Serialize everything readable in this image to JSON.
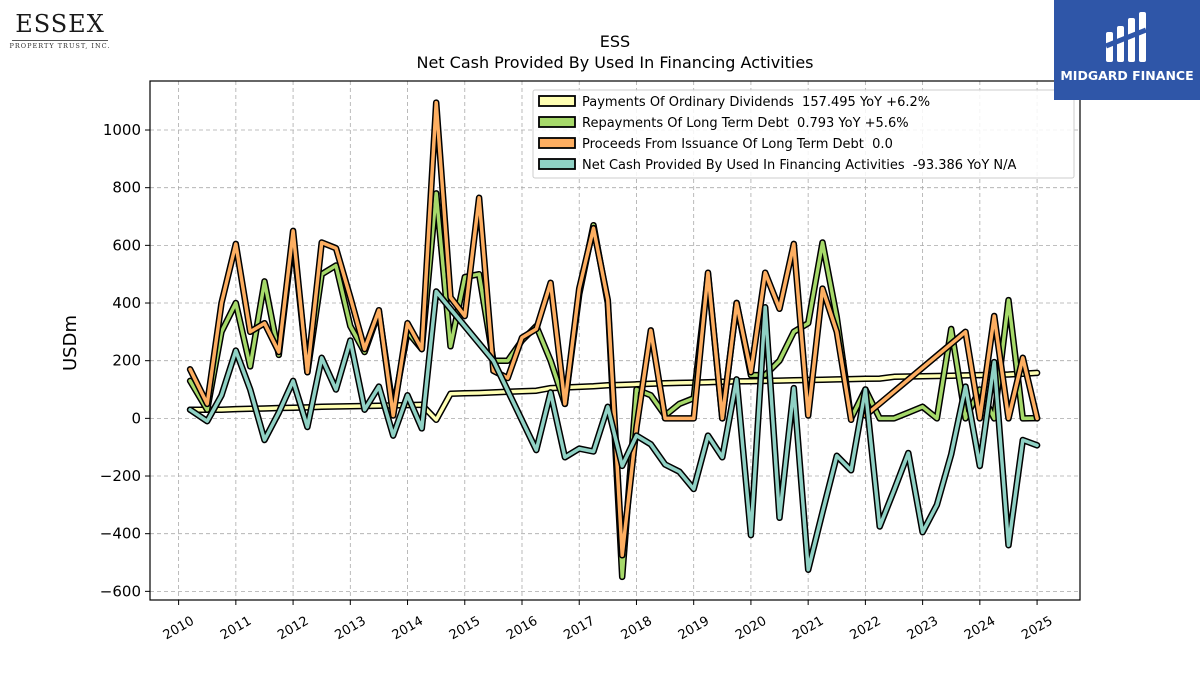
{
  "header": {
    "left_logo_text": "ESSEX",
    "left_logo_subtext": "PROPERTY TRUST, INC.",
    "right_logo_text": "MIDGARD FINANCE"
  },
  "colors": {
    "dividends": "#ffffb3",
    "debt_repayment": "#a6d96a",
    "debt_issuance": "#fdae61",
    "net_financing": "#8fd1c4",
    "outline": "#000000",
    "grid": "#aaaaaa",
    "logo_bg": "#2f56a8"
  },
  "chart_data": {
    "type": "line",
    "title": "ESS",
    "subtitle": "Net Cash Provided By Used In Financing Activities",
    "ylabel": "USDm",
    "xlabel": "",
    "ylim": [
      -630,
      1170
    ],
    "xlim": [
      2009.5,
      2025.75
    ],
    "grid": true,
    "legend_position": "top-right",
    "x_ticks": [
      "2010",
      "2011",
      "2012",
      "2013",
      "2014",
      "2015",
      "2016",
      "2017",
      "2018",
      "2019",
      "2020",
      "2021",
      "2022",
      "2023",
      "2024",
      "2025"
    ],
    "y_ticks": [
      "−600",
      "−400",
      "−200",
      "0",
      "200",
      "400",
      "600",
      "800",
      "1000"
    ],
    "series": [
      {
        "name": "Payments Of Ordinary Dividends",
        "legend_label": "Payments Of Ordinary Dividends  157.495 YoY +6.2%",
        "color_key": "dividends",
        "points": [
          [
            2010.2,
            30
          ],
          [
            2010.5,
            30
          ],
          [
            2010.75,
            30
          ],
          [
            2011.0,
            32
          ],
          [
            2011.25,
            33
          ],
          [
            2011.5,
            34
          ],
          [
            2011.75,
            36
          ],
          [
            2012.0,
            37
          ],
          [
            2012.25,
            38
          ],
          [
            2012.5,
            40
          ],
          [
            2012.75,
            41
          ],
          [
            2013.0,
            42
          ],
          [
            2013.25,
            43
          ],
          [
            2013.5,
            44
          ],
          [
            2013.75,
            45
          ],
          [
            2014.0,
            46
          ],
          [
            2014.25,
            47
          ],
          [
            2014.5,
            -5
          ],
          [
            2014.75,
            85
          ],
          [
            2015.0,
            87
          ],
          [
            2015.25,
            88
          ],
          [
            2015.5,
            90
          ],
          [
            2015.75,
            92
          ],
          [
            2016.0,
            94
          ],
          [
            2016.25,
            96
          ],
          [
            2016.5,
            105
          ],
          [
            2016.75,
            107
          ],
          [
            2017.0,
            109
          ],
          [
            2017.25,
            111
          ],
          [
            2017.5,
            115
          ],
          [
            2017.75,
            116
          ],
          [
            2018.0,
            118
          ],
          [
            2018.25,
            120
          ],
          [
            2018.5,
            122
          ],
          [
            2018.75,
            123
          ],
          [
            2019.0,
            124
          ],
          [
            2019.25,
            125
          ],
          [
            2019.5,
            127
          ],
          [
            2019.75,
            128
          ],
          [
            2020.0,
            129
          ],
          [
            2020.25,
            130
          ],
          [
            2020.5,
            131
          ],
          [
            2020.75,
            132
          ],
          [
            2021.0,
            133
          ],
          [
            2021.25,
            134
          ],
          [
            2021.5,
            135
          ],
          [
            2021.75,
            136
          ],
          [
            2022.0,
            137
          ],
          [
            2022.25,
            138
          ],
          [
            2022.5,
            144
          ],
          [
            2022.75,
            145
          ],
          [
            2023.0,
            146
          ],
          [
            2023.25,
            147
          ],
          [
            2023.5,
            148
          ],
          [
            2023.75,
            149
          ],
          [
            2024.0,
            150
          ],
          [
            2024.25,
            151
          ],
          [
            2024.5,
            152
          ],
          [
            2024.75,
            155
          ],
          [
            2025.0,
            157.495
          ]
        ]
      },
      {
        "name": "Repayments Of Long Term Debt",
        "legend_label": "Repayments Of Long Term Debt  0.793 YoY +5.6%",
        "color_key": "debt_repayment",
        "points": [
          [
            2010.2,
            130
          ],
          [
            2010.5,
            30
          ],
          [
            2010.75,
            300
          ],
          [
            2011.0,
            400
          ],
          [
            2011.25,
            180
          ],
          [
            2011.5,
            475
          ],
          [
            2011.75,
            220
          ],
          [
            2012.0,
            630
          ],
          [
            2012.25,
            160
          ],
          [
            2012.5,
            500
          ],
          [
            2012.75,
            530
          ],
          [
            2013.0,
            320
          ],
          [
            2013.25,
            230
          ],
          [
            2013.5,
            370
          ],
          [
            2013.75,
            30
          ],
          [
            2014.0,
            300
          ],
          [
            2014.25,
            240
          ],
          [
            2014.5,
            780
          ],
          [
            2014.75,
            250
          ],
          [
            2015.0,
            490
          ],
          [
            2015.25,
            500
          ],
          [
            2015.5,
            200
          ],
          [
            2015.75,
            200
          ],
          [
            2016.0,
            270
          ],
          [
            2016.25,
            320
          ],
          [
            2016.5,
            200
          ],
          [
            2016.75,
            50
          ],
          [
            2017.0,
            430
          ],
          [
            2017.25,
            670
          ],
          [
            2017.5,
            400
          ],
          [
            2017.75,
            -550
          ],
          [
            2018.0,
            100
          ],
          [
            2018.25,
            80
          ],
          [
            2018.5,
            10
          ],
          [
            2018.75,
            50
          ],
          [
            2019.0,
            70
          ],
          [
            2019.25,
            500
          ],
          [
            2019.5,
            0
          ],
          [
            2019.75,
            400
          ],
          [
            2020.0,
            150
          ],
          [
            2020.25,
            150
          ],
          [
            2020.5,
            200
          ],
          [
            2020.75,
            300
          ],
          [
            2021.0,
            330
          ],
          [
            2021.25,
            610
          ],
          [
            2021.5,
            350
          ],
          [
            2021.75,
            0
          ],
          [
            2022.0,
            100
          ],
          [
            2022.25,
            0
          ],
          [
            2022.5,
            0
          ],
          [
            2022.75,
            20
          ],
          [
            2023.0,
            40
          ],
          [
            2023.25,
            0
          ],
          [
            2023.5,
            310
          ],
          [
            2023.75,
            0
          ],
          [
            2024.0,
            100
          ],
          [
            2024.25,
            0
          ],
          [
            2024.5,
            410
          ],
          [
            2024.75,
            0
          ],
          [
            2025.0,
            0.793
          ]
        ]
      },
      {
        "name": "Proceeds From Issuance Of Long Term Debt",
        "legend_label": "Proceeds From Issuance Of Long Term Debt  0.0",
        "color_key": "debt_issuance",
        "segments": [
          [
            [
              2010.2,
              170
            ],
            [
              2010.5,
              50
            ],
            [
              2010.75,
              400
            ],
            [
              2011.0,
              605
            ],
            [
              2011.25,
              300
            ],
            [
              2011.5,
              330
            ],
            [
              2011.75,
              230
            ],
            [
              2012.0,
              650
            ],
            [
              2012.25,
              160
            ],
            [
              2012.5,
              610
            ],
            [
              2012.75,
              590
            ],
            [
              2013.0,
              420
            ],
            [
              2013.25,
              240
            ],
            [
              2013.5,
              375
            ],
            [
              2013.75,
              10
            ],
            [
              2014.0,
              330
            ],
            [
              2014.25,
              240
            ],
            [
              2014.5,
              1095
            ],
            [
              2014.75,
              420
            ],
            [
              2015.0,
              355
            ],
            [
              2015.25,
              765
            ],
            [
              2015.5,
              165
            ],
            [
              2015.75,
              140
            ],
            [
              2016.0,
              280
            ],
            [
              2016.25,
              310
            ],
            [
              2016.5,
              470
            ],
            [
              2016.75,
              50
            ],
            [
              2017.0,
              450
            ],
            [
              2017.25,
              660
            ],
            [
              2017.5,
              410
            ],
            [
              2017.75,
              -475
            ],
            [
              2018.0,
              -30
            ],
            [
              2018.25,
              305
            ],
            [
              2018.5,
              0
            ],
            [
              2018.75,
              0
            ],
            [
              2019.0,
              0
            ],
            [
              2019.25,
              505
            ],
            [
              2019.5,
              0
            ],
            [
              2019.75,
              400
            ],
            [
              2020.0,
              160
            ],
            [
              2020.25,
              505
            ],
            [
              2020.5,
              380
            ],
            [
              2020.75,
              605
            ],
            [
              2021.0,
              10
            ],
            [
              2021.25,
              450
            ],
            [
              2021.5,
              300
            ],
            [
              2021.75,
              -5
            ]
          ],
          [
            [
              2022.0,
              10
            ],
            [
              2023.75,
              300
            ],
            [
              2024.0,
              0
            ],
            [
              2024.25,
              355
            ],
            [
              2024.5,
              0
            ],
            [
              2024.75,
              210
            ],
            [
              2025.0,
              0.0
            ]
          ]
        ]
      },
      {
        "name": "Net Cash Provided By Used In Financing Activities",
        "legend_label": "Net Cash Provided By Used In Financing Activities  -93.386 YoY N/A",
        "color_key": "net_financing",
        "points": [
          [
            2010.2,
            30
          ],
          [
            2010.5,
            -10
          ],
          [
            2010.75,
            80
          ],
          [
            2011.0,
            235
          ],
          [
            2011.25,
            100
          ],
          [
            2011.5,
            -75
          ],
          [
            2011.75,
            20
          ],
          [
            2012.0,
            130
          ],
          [
            2012.25,
            -30
          ],
          [
            2012.5,
            210
          ],
          [
            2012.75,
            100
          ],
          [
            2013.0,
            270
          ],
          [
            2013.25,
            30
          ],
          [
            2013.5,
            110
          ],
          [
            2013.75,
            -60
          ],
          [
            2014.0,
            80
          ],
          [
            2014.25,
            -35
          ],
          [
            2014.5,
            440
          ],
          [
            2015.5,
            200
          ],
          [
            2016.25,
            -110
          ],
          [
            2016.5,
            90
          ],
          [
            2016.75,
            -135
          ],
          [
            2017.0,
            -105
          ],
          [
            2017.25,
            -115
          ],
          [
            2017.5,
            40
          ],
          [
            2017.75,
            -165
          ],
          [
            2018.0,
            -60
          ],
          [
            2018.25,
            -90
          ],
          [
            2018.5,
            -160
          ],
          [
            2018.75,
            -185
          ],
          [
            2019.0,
            -245
          ],
          [
            2019.25,
            -60
          ],
          [
            2019.5,
            -135
          ],
          [
            2019.75,
            135
          ],
          [
            2020.0,
            -405
          ],
          [
            2020.25,
            385
          ],
          [
            2020.5,
            -345
          ],
          [
            2020.75,
            105
          ],
          [
            2021.0,
            -525
          ],
          [
            2021.25,
            -325
          ],
          [
            2021.5,
            -130
          ],
          [
            2021.75,
            -180
          ],
          [
            2022.0,
            100
          ],
          [
            2022.25,
            -375
          ],
          [
            2022.5,
            -250
          ],
          [
            2022.75,
            -120
          ],
          [
            2023.0,
            -395
          ],
          [
            2023.25,
            -300
          ],
          [
            2023.5,
            -125
          ],
          [
            2023.75,
            110
          ],
          [
            2024.0,
            -165
          ],
          [
            2024.25,
            195
          ],
          [
            2024.5,
            -440
          ],
          [
            2024.75,
            -75
          ],
          [
            2025.0,
            -93.386
          ]
        ]
      }
    ]
  }
}
